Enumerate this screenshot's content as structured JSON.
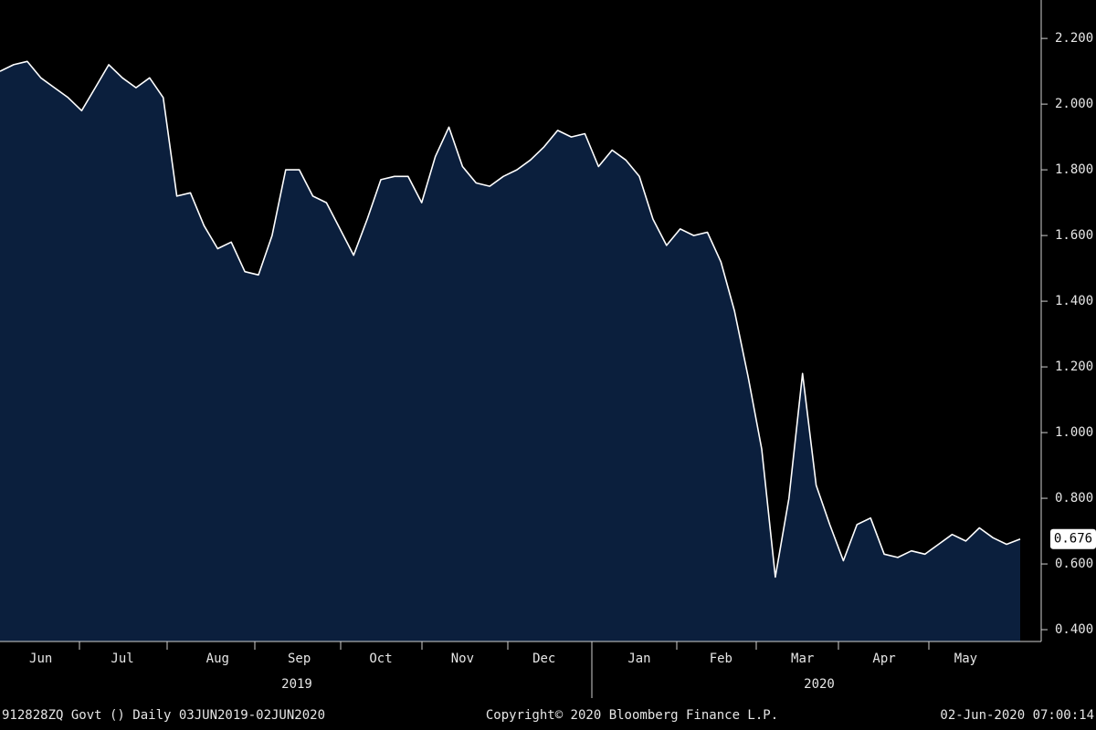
{
  "chart_data": {
    "type": "area",
    "categories": [
      null,
      null,
      null,
      "Jun",
      null,
      null,
      null,
      null,
      null,
      "Jul",
      null,
      null,
      null,
      null,
      null,
      null,
      "Aug",
      null,
      null,
      null,
      null,
      null,
      "Sep",
      null,
      null,
      null,
      null,
      null,
      "Oct",
      null,
      null,
      null,
      null,
      null,
      "Nov",
      null,
      null,
      null,
      null,
      null,
      "Dec",
      null,
      null,
      null,
      null,
      null,
      null,
      "Jan",
      null,
      null,
      null,
      null,
      null,
      "Feb",
      null,
      null,
      null,
      null,
      null,
      "Mar",
      null,
      null,
      null,
      null,
      null,
      "Apr",
      null,
      null,
      null,
      null,
      null,
      "May",
      null,
      null,
      null,
      null
    ],
    "series": [
      {
        "color": "#ffffff",
        "fill": "#0b1f3d",
        "values": [
          2.1,
          2.12,
          2.13,
          2.08,
          2.05,
          2.02,
          1.98,
          2.05,
          2.12,
          2.08,
          2.05,
          2.08,
          2.02,
          1.72,
          1.73,
          1.63,
          1.56,
          1.58,
          1.49,
          1.48,
          1.6,
          1.8,
          1.8,
          1.72,
          1.7,
          1.62,
          1.54,
          1.65,
          1.77,
          1.78,
          1.78,
          1.7,
          1.84,
          1.93,
          1.81,
          1.76,
          1.75,
          1.78,
          1.8,
          1.83,
          1.87,
          1.92,
          1.9,
          1.91,
          1.81,
          1.86,
          1.83,
          1.78,
          1.65,
          1.57,
          1.62,
          1.6,
          1.61,
          1.52,
          1.37,
          1.17,
          0.95,
          0.56,
          0.8,
          1.18,
          0.84,
          0.72,
          0.61,
          0.72,
          0.74,
          0.63,
          0.62,
          0.64,
          0.63,
          0.66,
          0.69,
          0.67,
          0.71,
          0.68,
          0.66,
          0.676
        ]
      }
    ],
    "ylim": [
      0.364,
      2.317
    ],
    "yticks": [
      {
        "value": 0.4,
        "label": "0.400"
      },
      {
        "value": 0.6,
        "label": "0.600"
      },
      {
        "value": 0.8,
        "label": "0.800"
      },
      {
        "value": 1.0,
        "label": "1.000"
      },
      {
        "value": 1.2,
        "label": "1.200"
      },
      {
        "value": 1.4,
        "label": "1.400"
      },
      {
        "value": 1.6,
        "label": "1.600"
      },
      {
        "value": 1.8,
        "label": "1.800"
      },
      {
        "value": 2.0,
        "label": "2.000"
      },
      {
        "value": 2.2,
        "label": "2.200"
      }
    ],
    "year_labels": [
      "2019",
      "2020"
    ],
    "footer_left": "912828ZQ Govt ()  Daily 03JUN2019-02JUN2020",
    "footer_center": "Copyright© 2020 Bloomberg Finance L.P.",
    "footer_right": "02-Jun-2020 07:00:14"
  }
}
